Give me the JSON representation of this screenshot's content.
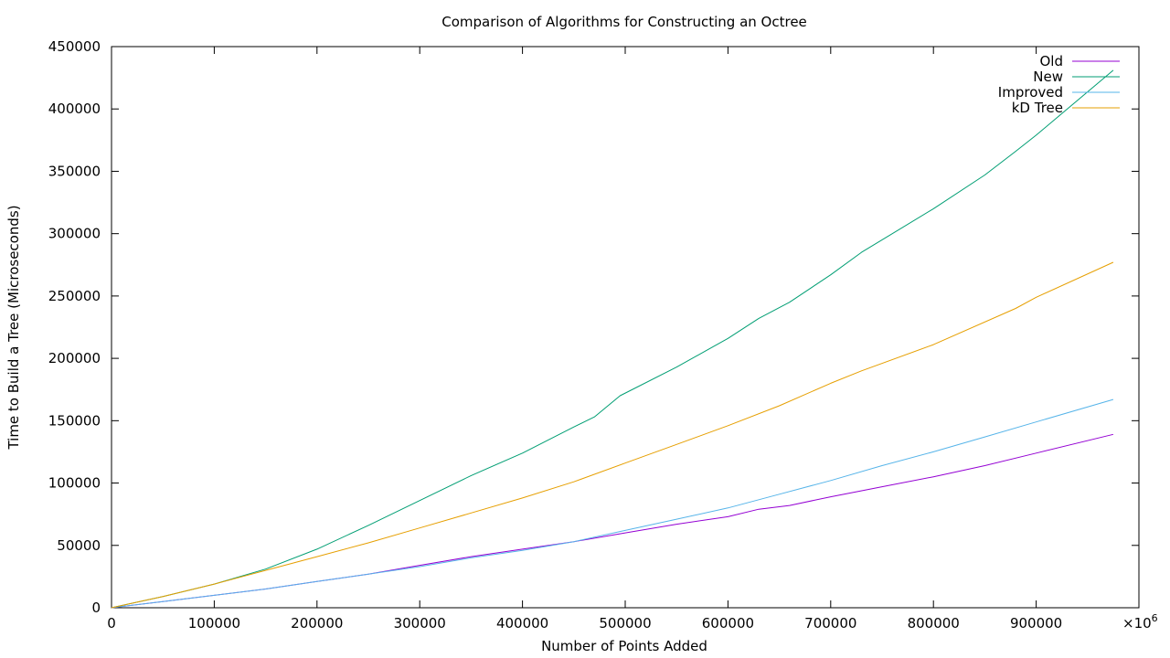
{
  "chart_data": {
    "type": "line",
    "title": "Comparison of Algorithms for Constructing an Octree",
    "xlabel": "Number of Points Added",
    "ylabel": "Time to Build a Tree (Microseconds)",
    "xlim": [
      0,
      1000000
    ],
    "ylim": [
      0,
      450000
    ],
    "x_ticks": [
      0,
      100000,
      200000,
      300000,
      400000,
      500000,
      600000,
      700000,
      800000,
      900000
    ],
    "x_tick_labels": [
      "0",
      "100000",
      "200000",
      "300000",
      "400000",
      "500000",
      "600000",
      "700000",
      "800000",
      "900000"
    ],
    "x_multiplier_label": "×10",
    "x_multiplier_exponent": "6",
    "y_ticks": [
      0,
      50000,
      100000,
      150000,
      200000,
      250000,
      300000,
      350000,
      400000,
      450000
    ],
    "y_tick_labels": [
      "0",
      "50000",
      "100000",
      "150000",
      "200000",
      "250000",
      "300000",
      "350000",
      "400000",
      "450000"
    ],
    "grid": false,
    "legend_position": "top-right",
    "series": [
      {
        "name": "Old",
        "color": "#9400d3",
        "x": [
          0,
          50000,
          100000,
          150000,
          200000,
          250000,
          300000,
          350000,
          400000,
          450000,
          500000,
          550000,
          600000,
          630000,
          660000,
          700000,
          750000,
          800000,
          850000,
          900000,
          975000
        ],
        "y": [
          0,
          5000,
          10000,
          15000,
          21000,
          27000,
          34000,
          41000,
          47000,
          53000,
          60000,
          67000,
          73000,
          79000,
          82000,
          89000,
          97000,
          105000,
          114000,
          124000,
          139000
        ]
      },
      {
        "name": "New",
        "color": "#009e73",
        "x": [
          0,
          50000,
          100000,
          150000,
          200000,
          250000,
          300000,
          350000,
          400000,
          450000,
          470000,
          495000,
          550000,
          600000,
          630000,
          660000,
          700000,
          730000,
          800000,
          850000,
          880000,
          900000,
          975000
        ],
        "y": [
          0,
          9000,
          19000,
          31000,
          47000,
          66000,
          86000,
          106000,
          124000,
          145000,
          153000,
          170000,
          193000,
          216000,
          232000,
          245000,
          267000,
          285000,
          320000,
          347000,
          366000,
          379000,
          431000
        ]
      },
      {
        "name": "Improved",
        "color": "#56b4e9",
        "x": [
          0,
          50000,
          100000,
          150000,
          200000,
          250000,
          300000,
          350000,
          400000,
          450000,
          500000,
          550000,
          600000,
          650000,
          700000,
          750000,
          800000,
          850000,
          900000,
          975000
        ],
        "y": [
          0,
          5000,
          10000,
          15000,
          21000,
          27000,
          33000,
          40000,
          46000,
          53000,
          62000,
          71000,
          80000,
          91000,
          102000,
          114000,
          125000,
          137000,
          149000,
          167000
        ]
      },
      {
        "name": "kD Tree",
        "color": "#e69f00",
        "x": [
          0,
          50000,
          100000,
          150000,
          200000,
          250000,
          300000,
          350000,
          400000,
          450000,
          500000,
          550000,
          600000,
          650000,
          700000,
          730000,
          800000,
          880000,
          900000,
          975000
        ],
        "y": [
          0,
          9000,
          19000,
          30000,
          41000,
          52000,
          64000,
          76000,
          88000,
          101000,
          116000,
          131000,
          146000,
          162000,
          180000,
          190000,
          211000,
          240000,
          249000,
          277000
        ]
      }
    ]
  }
}
